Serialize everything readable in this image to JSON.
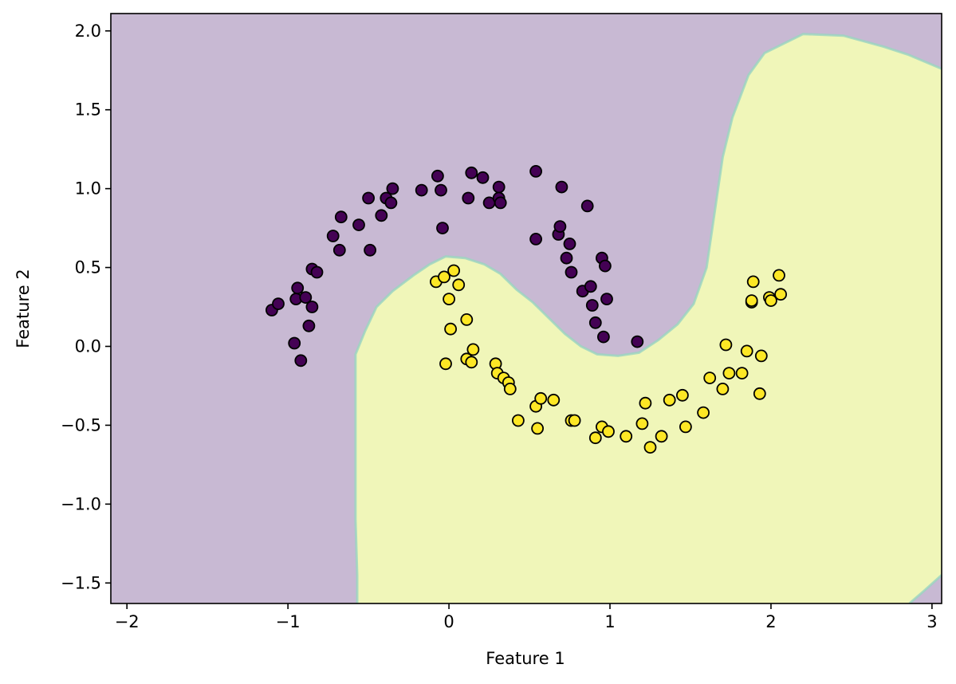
{
  "chart_data": {
    "type": "scatter",
    "title": "",
    "xlabel": "Feature 1",
    "ylabel": "Feature 2",
    "xlim": [
      -2.1,
      3.06
    ],
    "ylim": [
      -1.63,
      2.11
    ],
    "grid": false,
    "legend": "none",
    "x_ticks": [
      -2,
      -1,
      0,
      1,
      2,
      3
    ],
    "x_tick_labels": [
      "−2",
      "−1",
      "0",
      "1",
      "2",
      "3"
    ],
    "y_ticks": [
      -1.5,
      -1.0,
      -0.5,
      0.0,
      0.5,
      1.0,
      1.5,
      2.0
    ],
    "y_tick_labels": [
      "−1.5",
      "−1.0",
      "−0.5",
      "0.0",
      "0.5",
      "1.0",
      "1.5",
      "2.0"
    ],
    "region_colors": {
      "class_0": "#c8b9d3",
      "class_1": "#f0f6b9",
      "boundary": "#9ad4c0"
    },
    "decision_boundary": [
      [
        -0.57,
        -1.63
      ],
      [
        -0.57,
        -1.45
      ],
      [
        -0.58,
        -1.1
      ],
      [
        -0.58,
        -0.6
      ],
      [
        -0.58,
        -0.05
      ],
      [
        -0.52,
        0.1
      ],
      [
        -0.45,
        0.25
      ],
      [
        -0.35,
        0.35
      ],
      [
        -0.22,
        0.45
      ],
      [
        -0.12,
        0.52
      ],
      [
        -0.02,
        0.57
      ],
      [
        0.1,
        0.56
      ],
      [
        0.22,
        0.52
      ],
      [
        0.32,
        0.46
      ],
      [
        0.42,
        0.36
      ],
      [
        0.52,
        0.28
      ],
      [
        0.62,
        0.18
      ],
      [
        0.72,
        0.08
      ],
      [
        0.82,
        0.0
      ],
      [
        0.92,
        -0.05
      ],
      [
        1.05,
        -0.06
      ],
      [
        1.18,
        -0.04
      ],
      [
        1.3,
        0.04
      ],
      [
        1.42,
        0.14
      ],
      [
        1.52,
        0.27
      ],
      [
        1.6,
        0.5
      ],
      [
        1.65,
        0.85
      ],
      [
        1.7,
        1.2
      ],
      [
        1.76,
        1.45
      ],
      [
        1.86,
        1.72
      ],
      [
        1.96,
        1.86
      ],
      [
        2.2,
        1.98
      ],
      [
        2.45,
        1.97
      ],
      [
        2.7,
        1.9
      ],
      [
        2.85,
        1.85
      ],
      [
        3.06,
        1.76
      ]
    ],
    "decision_boundary_bottom_right": [
      [
        2.86,
        -1.63
      ],
      [
        2.95,
        -1.55
      ],
      [
        3.06,
        -1.45
      ]
    ],
    "series": [
      {
        "label": "0",
        "color": "#440154",
        "points": [
          [
            -1.1,
            0.23
          ],
          [
            -1.06,
            0.27
          ],
          [
            -0.95,
            0.3
          ],
          [
            -0.94,
            0.37
          ],
          [
            -0.96,
            0.02
          ],
          [
            -0.92,
            -0.09
          ],
          [
            -0.89,
            0.31
          ],
          [
            -0.87,
            0.13
          ],
          [
            -0.85,
            0.25
          ],
          [
            -0.85,
            0.49
          ],
          [
            -0.82,
            0.47
          ],
          [
            -0.72,
            0.7
          ],
          [
            -0.68,
            0.61
          ],
          [
            -0.67,
            0.82
          ],
          [
            -0.56,
            0.77
          ],
          [
            -0.5,
            0.94
          ],
          [
            -0.49,
            0.61
          ],
          [
            -0.42,
            0.83
          ],
          [
            -0.39,
            0.94
          ],
          [
            -0.36,
            0.91
          ],
          [
            -0.35,
            1.0
          ],
          [
            -0.17,
            0.99
          ],
          [
            -0.07,
            1.08
          ],
          [
            -0.05,
            0.99
          ],
          [
            -0.04,
            0.75
          ],
          [
            0.12,
            0.94
          ],
          [
            0.14,
            1.1
          ],
          [
            0.21,
            1.07
          ],
          [
            0.25,
            0.91
          ],
          [
            0.31,
            1.01
          ],
          [
            0.31,
            0.94
          ],
          [
            0.32,
            0.91
          ],
          [
            0.54,
            1.11
          ],
          [
            0.54,
            0.68
          ],
          [
            0.68,
            0.71
          ],
          [
            0.69,
            0.76
          ],
          [
            0.7,
            1.01
          ],
          [
            0.73,
            0.56
          ],
          [
            0.75,
            0.65
          ],
          [
            0.76,
            0.47
          ],
          [
            0.83,
            0.35
          ],
          [
            0.86,
            0.89
          ],
          [
            0.88,
            0.38
          ],
          [
            0.89,
            0.26
          ],
          [
            0.91,
            0.15
          ],
          [
            0.95,
            0.56
          ],
          [
            0.96,
            0.06
          ],
          [
            0.97,
            0.51
          ],
          [
            0.98,
            0.3
          ],
          [
            1.17,
            0.03
          ]
        ]
      },
      {
        "label": "1",
        "color": "#fde725",
        "points": [
          [
            -0.08,
            0.41
          ],
          [
            -0.03,
            0.44
          ],
          [
            -0.02,
            -0.11
          ],
          [
            0.0,
            0.3
          ],
          [
            0.01,
            0.11
          ],
          [
            0.03,
            0.48
          ],
          [
            0.06,
            0.39
          ],
          [
            0.11,
            0.17
          ],
          [
            0.11,
            -0.08
          ],
          [
            0.14,
            -0.1
          ],
          [
            0.15,
            -0.02
          ],
          [
            0.29,
            -0.11
          ],
          [
            0.3,
            -0.17
          ],
          [
            0.34,
            -0.2
          ],
          [
            0.37,
            -0.23
          ],
          [
            0.38,
            -0.27
          ],
          [
            0.43,
            -0.47
          ],
          [
            0.54,
            -0.38
          ],
          [
            0.55,
            -0.52
          ],
          [
            0.57,
            -0.33
          ],
          [
            0.65,
            -0.34
          ],
          [
            0.76,
            -0.47
          ],
          [
            0.78,
            -0.47
          ],
          [
            0.91,
            -0.58
          ],
          [
            0.95,
            -0.51
          ],
          [
            0.99,
            -0.54
          ],
          [
            1.1,
            -0.57
          ],
          [
            1.2,
            -0.49
          ],
          [
            1.22,
            -0.36
          ],
          [
            1.25,
            -0.64
          ],
          [
            1.32,
            -0.57
          ],
          [
            1.37,
            -0.34
          ],
          [
            1.45,
            -0.31
          ],
          [
            1.47,
            -0.51
          ],
          [
            1.58,
            -0.42
          ],
          [
            1.62,
            -0.2
          ],
          [
            1.7,
            -0.27
          ],
          [
            1.72,
            0.01
          ],
          [
            1.74,
            -0.17
          ],
          [
            1.82,
            -0.17
          ],
          [
            1.85,
            -0.03
          ],
          [
            1.88,
            0.28
          ],
          [
            1.88,
            0.29
          ],
          [
            1.89,
            0.41
          ],
          [
            1.93,
            -0.3
          ],
          [
            1.94,
            -0.06
          ],
          [
            1.99,
            0.31
          ],
          [
            2.0,
            0.29
          ],
          [
            2.05,
            0.45
          ],
          [
            2.06,
            0.33
          ]
        ]
      }
    ]
  }
}
